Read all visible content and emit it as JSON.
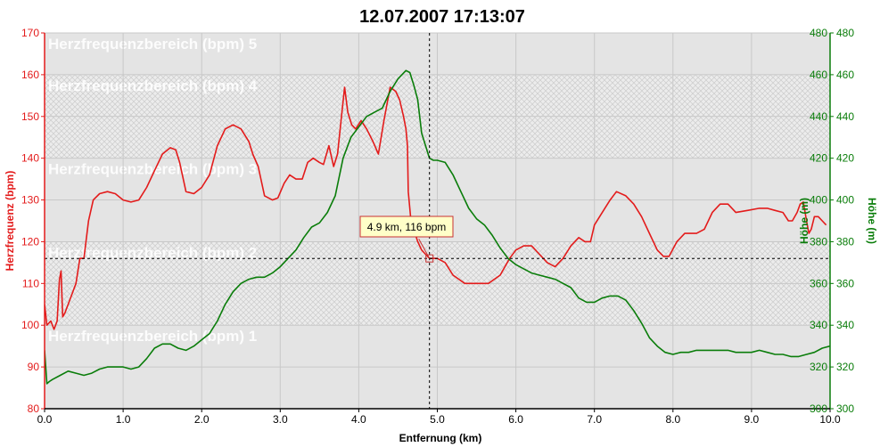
{
  "window": {
    "title": "12.07.2007 17:13:07"
  },
  "colors": {
    "heart_rate": "#e31b1b",
    "altitude": "#0a7d0a",
    "zone_band_a": "#e4e4e4",
    "zone_band_b": "#ececec",
    "hatch": "#cfcfcf",
    "grid": "#c8c8c8",
    "tooltip_bg": "#ffffc8"
  },
  "chart_data": {
    "type": "line",
    "title": "12.07.2007 17:13:07",
    "xlabel": "Entfernung (km)",
    "ylabel_left": "Herzfrequenz (bpm)",
    "ylabel_right": "Höhe (m)",
    "xlim": [
      0,
      10
    ],
    "ylim_left": [
      80,
      170
    ],
    "ylim_right": [
      300,
      480
    ],
    "x_ticks": [
      "0.0",
      "1.0",
      "2.0",
      "3.0",
      "4.0",
      "5.0",
      "6.0",
      "7.0",
      "8.0",
      "9.0",
      "10.0"
    ],
    "y_left_ticks": [
      "80",
      "90",
      "100",
      "110",
      "120",
      "130",
      "140",
      "150",
      "160",
      "170"
    ],
    "y_right_ticks": [
      "300",
      "320",
      "340",
      "360",
      "380",
      "400",
      "420",
      "440",
      "460",
      "480"
    ],
    "grid": true,
    "zones": [
      {
        "label": "Herzfrequenzbereich (bpm) 1",
        "from": 80,
        "to": 100,
        "hatched": false
      },
      {
        "label": "Herzfrequenzbereich (bpm) 2",
        "from": 100,
        "to": 120,
        "hatched": true
      },
      {
        "label": "Herzfrequenzbereich (bpm) 3",
        "from": 120,
        "to": 140,
        "hatched": false
      },
      {
        "label": "Herzfrequenzbereich (bpm) 4",
        "from": 140,
        "to": 160,
        "hatched": true
      },
      {
        "label": "Herzfrequenzbereich (bpm) 5",
        "from": 160,
        "to": 170,
        "hatched": false
      }
    ],
    "crosshair": {
      "x": 4.9,
      "y": 116
    },
    "tooltip": "4.9 km, 116 bpm",
    "series": [
      {
        "axis": "left",
        "points": [
          [
            0.0,
            105
          ],
          [
            0.03,
            100
          ],
          [
            0.08,
            101
          ],
          [
            0.12,
            99
          ],
          [
            0.16,
            101
          ],
          [
            0.19,
            111
          ],
          [
            0.21,
            113
          ],
          [
            0.23,
            102
          ],
          [
            0.26,
            103
          ],
          [
            0.32,
            106
          ],
          [
            0.4,
            110
          ],
          [
            0.45,
            116
          ],
          [
            0.5,
            116
          ],
          [
            0.56,
            125
          ],
          [
            0.62,
            130
          ],
          [
            0.7,
            131.5
          ],
          [
            0.8,
            132
          ],
          [
            0.9,
            131.5
          ],
          [
            1.0,
            130
          ],
          [
            1.1,
            129.5
          ],
          [
            1.2,
            130
          ],
          [
            1.3,
            133
          ],
          [
            1.4,
            137
          ],
          [
            1.5,
            141
          ],
          [
            1.6,
            142.5
          ],
          [
            1.67,
            142
          ],
          [
            1.72,
            139
          ],
          [
            1.8,
            132
          ],
          [
            1.9,
            131.5
          ],
          [
            2.0,
            133
          ],
          [
            2.1,
            136
          ],
          [
            2.2,
            143
          ],
          [
            2.3,
            147
          ],
          [
            2.4,
            148
          ],
          [
            2.5,
            147
          ],
          [
            2.6,
            144
          ],
          [
            2.65,
            141
          ],
          [
            2.72,
            138
          ],
          [
            2.8,
            131
          ],
          [
            2.9,
            130
          ],
          [
            2.97,
            130.5
          ],
          [
            3.05,
            134
          ],
          [
            3.12,
            136
          ],
          [
            3.2,
            135
          ],
          [
            3.28,
            135
          ],
          [
            3.35,
            139
          ],
          [
            3.42,
            140
          ],
          [
            3.5,
            139
          ],
          [
            3.55,
            138.5
          ],
          [
            3.62,
            143
          ],
          [
            3.68,
            138
          ],
          [
            3.73,
            141
          ],
          [
            3.78,
            150
          ],
          [
            3.82,
            157
          ],
          [
            3.86,
            151
          ],
          [
            3.91,
            148
          ],
          [
            3.96,
            147
          ],
          [
            4.03,
            149
          ],
          [
            4.1,
            147
          ],
          [
            4.18,
            144
          ],
          [
            4.25,
            141
          ],
          [
            4.32,
            149
          ],
          [
            4.4,
            157
          ],
          [
            4.47,
            156
          ],
          [
            4.52,
            154
          ],
          [
            4.57,
            150
          ],
          [
            4.6,
            147
          ],
          [
            4.62,
            143
          ],
          [
            4.63,
            132
          ],
          [
            4.66,
            126
          ],
          [
            4.7,
            123
          ],
          [
            4.75,
            120
          ],
          [
            4.8,
            118
          ],
          [
            4.85,
            117
          ],
          [
            4.9,
            116
          ],
          [
            5.0,
            116
          ],
          [
            5.1,
            115
          ],
          [
            5.2,
            112
          ],
          [
            5.35,
            110
          ],
          [
            5.5,
            110
          ],
          [
            5.65,
            110
          ],
          [
            5.8,
            112
          ],
          [
            5.92,
            116
          ],
          [
            6.0,
            118
          ],
          [
            6.1,
            119
          ],
          [
            6.2,
            119
          ],
          [
            6.3,
            117
          ],
          [
            6.4,
            115
          ],
          [
            6.5,
            114
          ],
          [
            6.6,
            116
          ],
          [
            6.7,
            119
          ],
          [
            6.8,
            121
          ],
          [
            6.88,
            120
          ],
          [
            6.95,
            120
          ],
          [
            7.0,
            124
          ],
          [
            7.1,
            127
          ],
          [
            7.2,
            130
          ],
          [
            7.28,
            132
          ],
          [
            7.4,
            131
          ],
          [
            7.5,
            129
          ],
          [
            7.6,
            126
          ],
          [
            7.7,
            122
          ],
          [
            7.8,
            118
          ],
          [
            7.88,
            116.5
          ],
          [
            7.95,
            116.5
          ],
          [
            8.05,
            120
          ],
          [
            8.15,
            122
          ],
          [
            8.3,
            122
          ],
          [
            8.4,
            123
          ],
          [
            8.5,
            127
          ],
          [
            8.6,
            129
          ],
          [
            8.7,
            129
          ],
          [
            8.8,
            127
          ],
          [
            8.95,
            127.5
          ],
          [
            9.1,
            128
          ],
          [
            9.2,
            128
          ],
          [
            9.3,
            127.5
          ],
          [
            9.4,
            127
          ],
          [
            9.47,
            125
          ],
          [
            9.52,
            125
          ],
          [
            9.58,
            127
          ],
          [
            9.62,
            129
          ],
          [
            9.66,
            129.5
          ],
          [
            9.7,
            125
          ],
          [
            9.73,
            122
          ],
          [
            9.76,
            123
          ],
          [
            9.8,
            126
          ],
          [
            9.85,
            126
          ],
          [
            9.9,
            125
          ],
          [
            9.95,
            124
          ]
        ]
      },
      {
        "axis": "right",
        "points": [
          [
            0.0,
            328
          ],
          [
            0.03,
            312
          ],
          [
            0.06,
            313
          ],
          [
            0.1,
            314
          ],
          [
            0.2,
            316
          ],
          [
            0.3,
            318
          ],
          [
            0.4,
            317
          ],
          [
            0.5,
            316
          ],
          [
            0.6,
            317
          ],
          [
            0.7,
            319
          ],
          [
            0.8,
            320
          ],
          [
            0.9,
            320
          ],
          [
            1.0,
            320
          ],
          [
            1.1,
            319
          ],
          [
            1.2,
            320
          ],
          [
            1.3,
            324
          ],
          [
            1.4,
            329
          ],
          [
            1.5,
            331
          ],
          [
            1.6,
            331
          ],
          [
            1.7,
            329
          ],
          [
            1.8,
            328
          ],
          [
            1.9,
            330
          ],
          [
            2.0,
            333
          ],
          [
            2.1,
            336
          ],
          [
            2.2,
            342
          ],
          [
            2.3,
            350
          ],
          [
            2.4,
            356
          ],
          [
            2.5,
            360
          ],
          [
            2.6,
            362
          ],
          [
            2.7,
            363
          ],
          [
            2.8,
            363
          ],
          [
            2.9,
            365
          ],
          [
            3.0,
            368
          ],
          [
            3.1,
            372
          ],
          [
            3.2,
            376
          ],
          [
            3.3,
            382
          ],
          [
            3.4,
            387
          ],
          [
            3.5,
            389
          ],
          [
            3.6,
            394
          ],
          [
            3.7,
            402
          ],
          [
            3.8,
            420
          ],
          [
            3.9,
            430
          ],
          [
            4.0,
            435
          ],
          [
            4.1,
            440
          ],
          [
            4.2,
            442
          ],
          [
            4.3,
            444
          ],
          [
            4.4,
            452
          ],
          [
            4.5,
            458
          ],
          [
            4.6,
            462
          ],
          [
            4.65,
            461
          ],
          [
            4.7,
            455
          ],
          [
            4.75,
            448
          ],
          [
            4.8,
            432
          ],
          [
            4.85,
            426
          ],
          [
            4.9,
            420
          ],
          [
            4.95,
            419
          ],
          [
            5.0,
            419
          ],
          [
            5.1,
            418
          ],
          [
            5.2,
            412
          ],
          [
            5.3,
            404
          ],
          [
            5.4,
            396
          ],
          [
            5.5,
            391
          ],
          [
            5.6,
            388
          ],
          [
            5.7,
            383
          ],
          [
            5.8,
            377
          ],
          [
            5.9,
            372
          ],
          [
            6.0,
            369
          ],
          [
            6.1,
            367
          ],
          [
            6.2,
            365
          ],
          [
            6.3,
            364
          ],
          [
            6.4,
            363
          ],
          [
            6.5,
            362
          ],
          [
            6.6,
            360
          ],
          [
            6.7,
            358
          ],
          [
            6.8,
            353
          ],
          [
            6.9,
            351
          ],
          [
            7.0,
            351
          ],
          [
            7.1,
            353
          ],
          [
            7.2,
            354
          ],
          [
            7.3,
            354
          ],
          [
            7.4,
            352
          ],
          [
            7.5,
            347
          ],
          [
            7.6,
            341
          ],
          [
            7.7,
            334
          ],
          [
            7.8,
            330
          ],
          [
            7.9,
            327
          ],
          [
            8.0,
            326
          ],
          [
            8.1,
            327
          ],
          [
            8.2,
            327
          ],
          [
            8.3,
            328
          ],
          [
            8.4,
            328
          ],
          [
            8.5,
            328
          ],
          [
            8.6,
            328
          ],
          [
            8.7,
            328
          ],
          [
            8.8,
            327
          ],
          [
            8.9,
            327
          ],
          [
            9.0,
            327
          ],
          [
            9.1,
            328
          ],
          [
            9.2,
            327
          ],
          [
            9.3,
            326
          ],
          [
            9.4,
            326
          ],
          [
            9.5,
            325
          ],
          [
            9.6,
            325
          ],
          [
            9.7,
            326
          ],
          [
            9.8,
            327
          ],
          [
            9.9,
            329
          ],
          [
            10.0,
            330
          ]
        ]
      }
    ]
  }
}
